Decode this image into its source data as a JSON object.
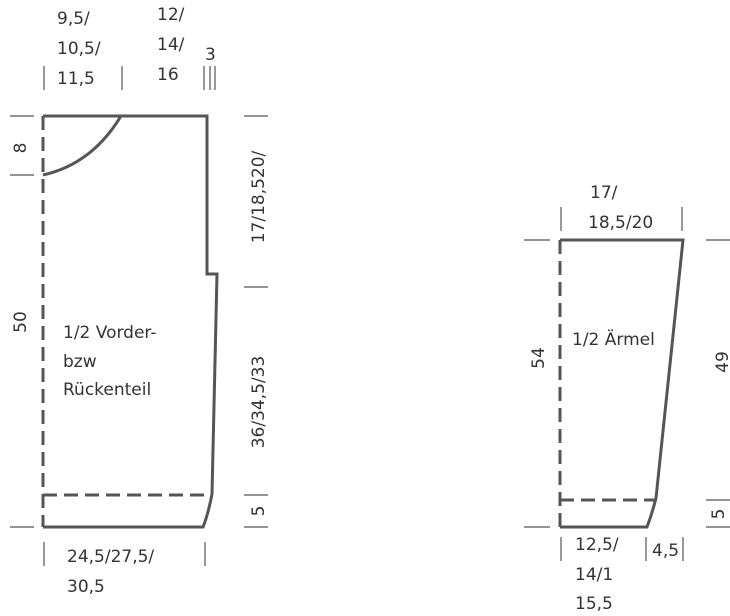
{
  "body_piece": {
    "label_lines": [
      "1/2 Vorder-",
      "bzw",
      "Rückenteil"
    ],
    "top_shoulder_lines": [
      "9,5/",
      "10,5/",
      "11,5"
    ],
    "top_neck_lines": [
      "12/",
      "14/",
      "16"
    ],
    "top_edge": "3",
    "neck_depth": "8",
    "total_height": "50",
    "armhole_depth": "17/18,520/",
    "side_length": "36/34,5/33",
    "hem_height": "5",
    "bottom_width_lines": [
      "24,5/27,5/",
      "30,5"
    ]
  },
  "sleeve_piece": {
    "label": "1/2 Ärmel",
    "top_width_lines": [
      "17/",
      "18,5/20"
    ],
    "total_height": "54",
    "side_length": "49",
    "hem_height": "5",
    "bottom_width_lines": [
      "12,5/",
      "14/1",
      "15,5"
    ],
    "bottom_side": "4,5"
  },
  "colors": {
    "line": "#555555",
    "text": "#333333"
  }
}
